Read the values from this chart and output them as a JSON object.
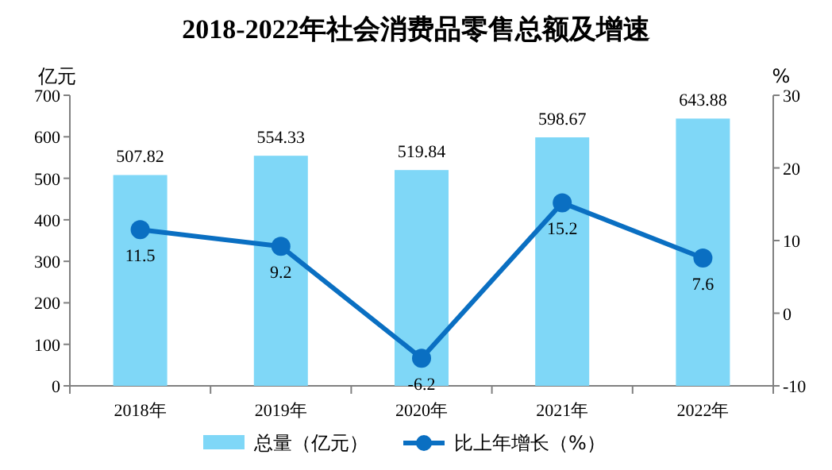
{
  "chart_data": {
    "type": "bar",
    "title": "2018-2022年社会消费品零售总额及增速",
    "ylabel": "亿元",
    "y2label": "%",
    "categories": [
      "2018年",
      "2019年",
      "2020年",
      "2021年",
      "2022年"
    ],
    "series": [
      {
        "name": "总量（亿元）",
        "color": "#7fd7f7",
        "values": [
          507.82,
          554.33,
          519.84,
          598.67,
          643.88
        ]
      },
      {
        "name": "比上年增长（%）",
        "type": "line",
        "axis": "y2",
        "color": "#0a6fc2",
        "marker": "circle",
        "values": [
          11.5,
          9.2,
          -6.2,
          15.2,
          7.6
        ]
      }
    ],
    "ylim": [
      0,
      700
    ],
    "yticks": [
      0,
      100,
      200,
      300,
      400,
      500,
      600,
      700
    ],
    "y2lim": [
      -10,
      30
    ],
    "y2ticks": [
      -10,
      0,
      10,
      20,
      30
    ],
    "data_labels": true,
    "legend": "bottom",
    "grid": false
  }
}
